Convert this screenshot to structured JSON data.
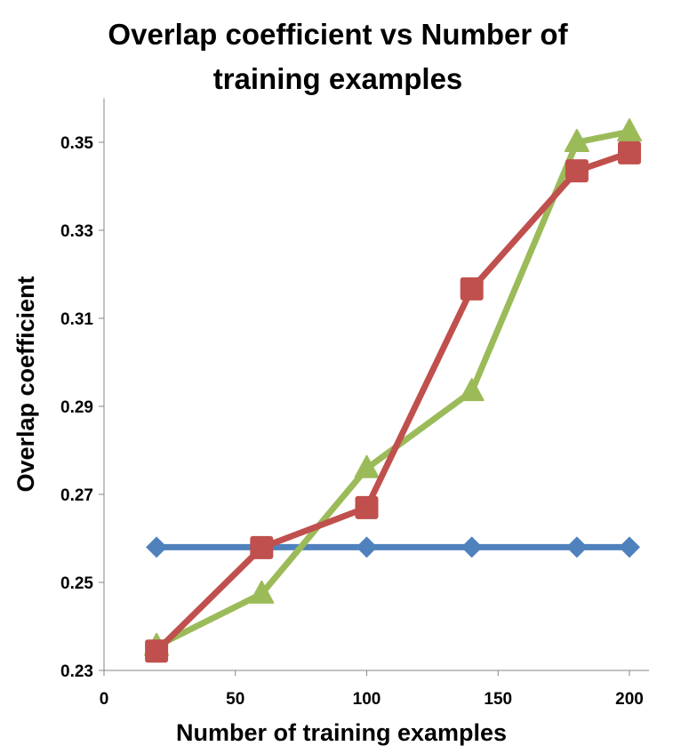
{
  "chart_data": {
    "type": "line",
    "title": "Overlap coefficient vs Number of training examples",
    "xlabel": "Number of training examples",
    "ylabel": "Overlap coefficient",
    "xlim": [
      0,
      200
    ],
    "ylim": [
      0.23,
      0.36
    ],
    "xticks": [
      "0",
      "50",
      "100",
      "150",
      "200"
    ],
    "yticks": [
      "0.23",
      "0.25",
      "0.27",
      "0.29",
      "0.31",
      "0.33",
      "0.35"
    ],
    "grid": false,
    "legend": "none",
    "x": [
      20,
      60,
      100,
      140,
      180,
      200
    ],
    "series": [
      {
        "color": "#4F81BD",
        "marker": "diamond",
        "values": [
          0.258,
          0.258,
          0.258,
          0.258,
          0.258,
          0.258
        ]
      },
      {
        "color": "#9BBB59",
        "marker": "triangle",
        "values": [
          0.2355,
          0.2474,
          0.2759,
          0.2934,
          0.35,
          0.3524
        ]
      },
      {
        "color": "#C0504D",
        "marker": "square",
        "values": [
          0.2344,
          0.2579,
          0.267,
          0.3167,
          0.3435,
          0.3476
        ]
      }
    ]
  }
}
